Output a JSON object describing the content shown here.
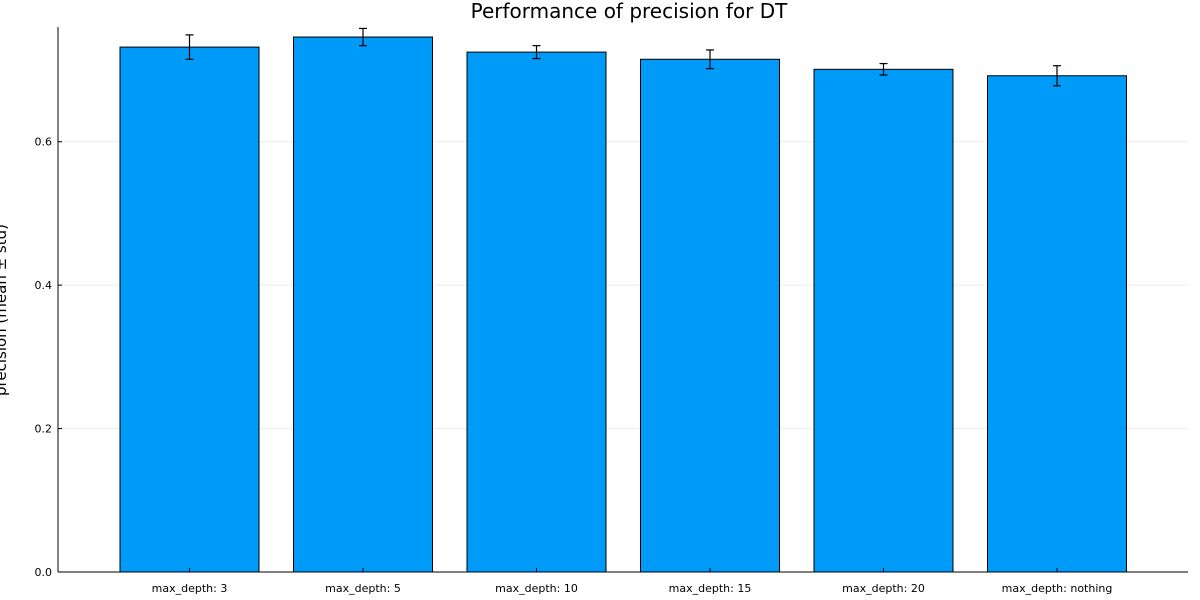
{
  "chart_data": {
    "type": "bar",
    "title": "Performance of precision for DT",
    "xlabel": "",
    "ylabel": "precision (mean ± std)",
    "categories": [
      "max_depth: 3",
      "max_depth: 5",
      "max_depth: 10",
      "max_depth: 15",
      "max_depth: 20",
      "max_depth: nothing"
    ],
    "series": [
      {
        "values": [
          0.732,
          0.746,
          0.725,
          0.715,
          0.701,
          0.692
        ],
        "errors": [
          0.017,
          0.012,
          0.009,
          0.013,
          0.008,
          0.014
        ]
      }
    ],
    "ylim": [
      0,
      0.76
    ],
    "yticks": [
      0.0,
      0.2,
      0.4,
      0.6
    ],
    "ytick_labels": [
      "0.0",
      "0.2",
      "0.4",
      "0.6"
    ],
    "grid": true,
    "legend": "none",
    "colors": {
      "bar": "#009af9",
      "bar_edge": "#000000",
      "error_bar": "#000000",
      "grid": "#ececec",
      "axis": "#000000"
    }
  }
}
